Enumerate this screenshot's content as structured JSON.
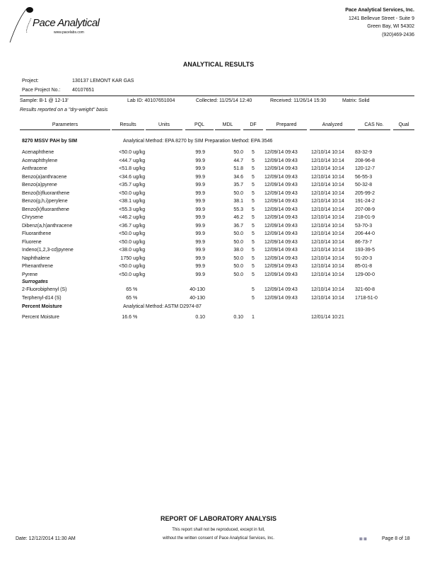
{
  "company": {
    "logo_text": "Pace Analytical",
    "logo_url": "www.pacelabs.com",
    "name": "Pace Analytical Services, Inc.",
    "address1": "1241 Bellevue Street - Suite 9",
    "address2": "Green Bay, WI 54302",
    "phone": "(920)469-2436"
  },
  "title": "ANALYTICAL RESULTS",
  "project": {
    "project_label": "Project:",
    "project_value": "130137 LEMONT KAR GAS",
    "no_label": "Pace Project No.:",
    "no_value": "40107651"
  },
  "sample": {
    "sample": "Sample: B-1 @ 12-13'",
    "lab_id": "Lab ID: 40107651004",
    "collected": "Collected: 11/25/14 12:40",
    "received": "Received: 11/26/14 15:30",
    "matrix": "Matrix: Solid",
    "basis": "Results reported on a \"dry-weight\" basis"
  },
  "columns": [
    "Parameters",
    "Results",
    "Units",
    "PQL",
    "MDL",
    "DF",
    "Prepared",
    "Analyzed",
    "CAS No.",
    "Qual"
  ],
  "section1": {
    "name": "8270 MSSV PAH by SIM",
    "method": "Analytical Method: EPA 8270 by SIM  Preparation Method: EPA 3546"
  },
  "rows": [
    [
      "Acenaphthene",
      "<50.0",
      "ug/kg",
      "99.9",
      "50.0",
      "5",
      "12/09/14 09:43",
      "12/10/14 10:14",
      "83-32-9"
    ],
    [
      "Acenaphthylene",
      "<44.7",
      "ug/kg",
      "99.9",
      "44.7",
      "5",
      "12/09/14 09:43",
      "12/10/14 10:14",
      "208-96-8"
    ],
    [
      "Anthracene",
      "<51.8",
      "ug/kg",
      "99.9",
      "51.8",
      "5",
      "12/09/14 09:43",
      "12/10/14 10:14",
      "120-12-7"
    ],
    [
      "Benzo(a)anthracene",
      "<34.6",
      "ug/kg",
      "99.9",
      "34.6",
      "5",
      "12/09/14 09:43",
      "12/10/14 10:14",
      "56-55-3"
    ],
    [
      "Benzo(a)pyrene",
      "<35.7",
      "ug/kg",
      "99.9",
      "35.7",
      "5",
      "12/09/14 09:43",
      "12/10/14 10:14",
      "50-32-8"
    ],
    [
      "Benzo(b)fluoranthene",
      "<50.0",
      "ug/kg",
      "99.9",
      "50.0",
      "5",
      "12/09/14 09:43",
      "12/10/14 10:14",
      "205-99-2"
    ],
    [
      "Benzo(g,h,i)perylene",
      "<38.1",
      "ug/kg",
      "99.9",
      "38.1",
      "5",
      "12/09/14 09:43",
      "12/10/14 10:14",
      "191-24-2"
    ],
    [
      "Benzo(k)fluoranthene",
      "<55.3",
      "ug/kg",
      "99.9",
      "55.3",
      "5",
      "12/09/14 09:43",
      "12/10/14 10:14",
      "207-08-9"
    ],
    [
      "Chrysene",
      "<46.2",
      "ug/kg",
      "99.9",
      "46.2",
      "5",
      "12/09/14 09:43",
      "12/10/14 10:14",
      "218-01-9"
    ],
    [
      "Dibenz(a,h)anthracene",
      "<36.7",
      "ug/kg",
      "99.9",
      "36.7",
      "5",
      "12/09/14 09:43",
      "12/10/14 10:14",
      "53-70-3"
    ],
    [
      "Fluoranthene",
      "<50.0",
      "ug/kg",
      "99.9",
      "50.0",
      "5",
      "12/09/14 09:43",
      "12/10/14 10:14",
      "206-44-0"
    ],
    [
      "Fluorene",
      "<50.0",
      "ug/kg",
      "99.9",
      "50.0",
      "5",
      "12/09/14 09:43",
      "12/10/14 10:14",
      "86-73-7"
    ],
    [
      "Indeno(1,2,3-cd)pyrene",
      "<38.0",
      "ug/kg",
      "99.9",
      "38.0",
      "5",
      "12/09/14 09:43",
      "12/10/14 10:14",
      "193-39-5"
    ],
    [
      "Naphthalene",
      "1750",
      "ug/kg",
      "99.9",
      "50.0",
      "5",
      "12/09/14 09:43",
      "12/10/14 10:14",
      "91-20-3"
    ],
    [
      "Phenanthrene",
      "<50.0",
      "ug/kg",
      "99.9",
      "50.0",
      "5",
      "12/09/14 09:43",
      "12/10/14 10:14",
      "85-01-8"
    ],
    [
      "Pyrene",
      "<50.0",
      "ug/kg",
      "99.9",
      "50.0",
      "5",
      "12/09/14 09:43",
      "12/10/14 10:14",
      "129-00-0"
    ]
  ],
  "surrogates_label": "Surrogates",
  "surrogates": [
    [
      "2-Fluorobiphenyl (S)",
      "65",
      "%",
      "40-130",
      "",
      "5",
      "12/09/14 09:43",
      "12/10/14 10:14",
      "321-60-8"
    ],
    [
      "Terphenyl-d14 (S)",
      "65",
      "%",
      "40-130",
      "",
      "5",
      "12/09/14 09:43",
      "12/10/14 10:14",
      "1718-51-0"
    ]
  ],
  "section2": {
    "name": "Percent Moisture",
    "method": "Analytical Method: ASTM D2974-87"
  },
  "moisture": [
    [
      "Percent Moisture",
      "16.6",
      "%",
      "0.10",
      "0.10",
      "1",
      "",
      "12/01/14 10:21",
      ""
    ]
  ],
  "footer": {
    "title": "REPORT OF LABORATORY ANALYSIS",
    "note1": "This report shall not be reproduced, except in full,",
    "note2": "without the written consent of Pace Analytical Services, Inc.",
    "date": "Date: 12/12/2014 11:30 AM",
    "page": "Page 8 of 18"
  }
}
